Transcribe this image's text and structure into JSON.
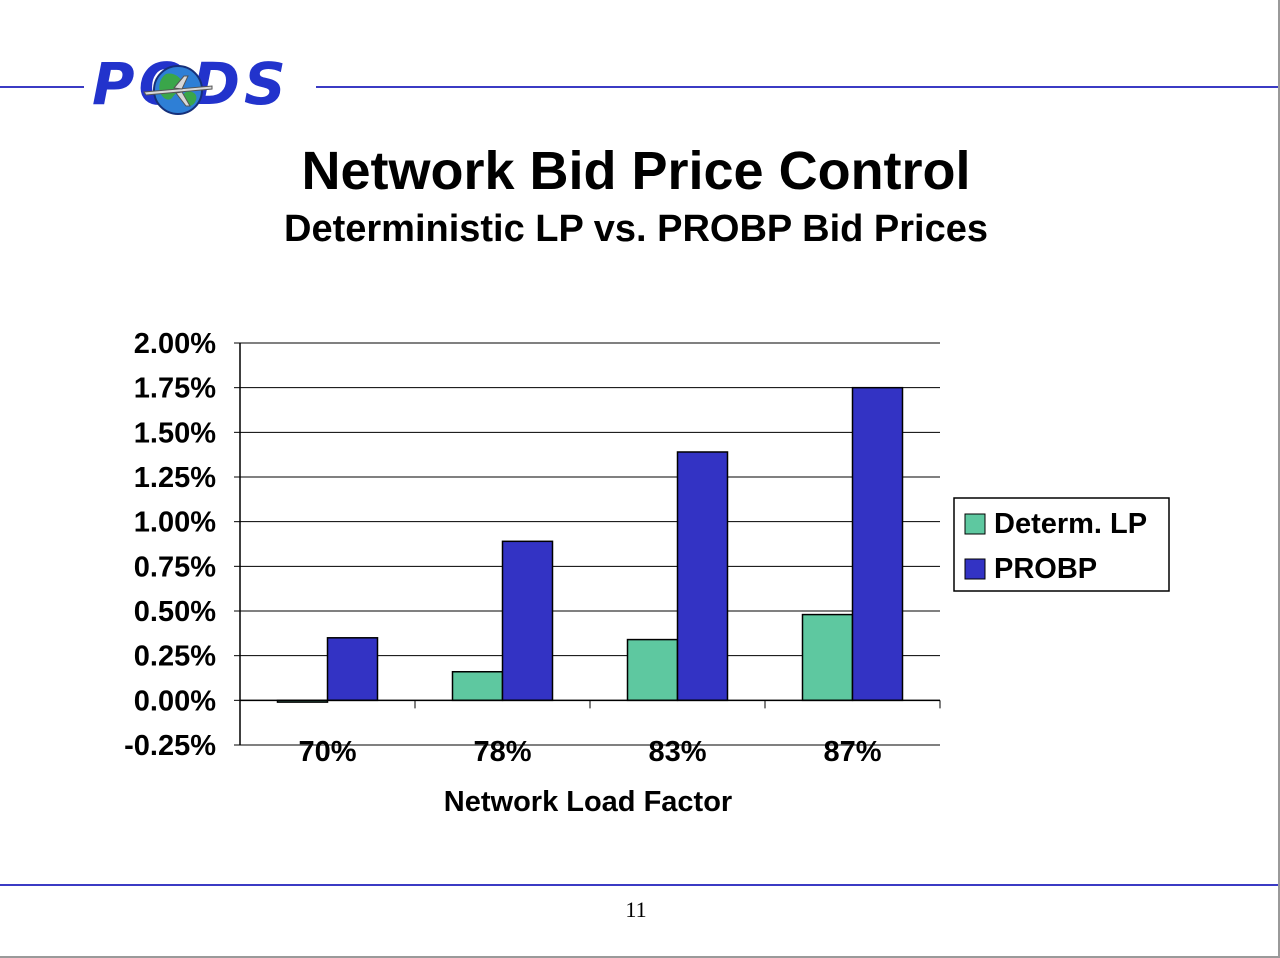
{
  "slide": {
    "title": "Network Bid Price Control",
    "subtitle": "Deterministic LP vs. PROBP Bid Prices",
    "page_number": "11",
    "logo_text": "PODS",
    "accent_color": "#3b3bc4"
  },
  "chart_data": {
    "type": "bar",
    "categories": [
      "70%",
      "78%",
      "83%",
      "87%"
    ],
    "series": [
      {
        "name": "Determ. LP",
        "color": "#5ec8a0",
        "values": [
          -0.01,
          0.16,
          0.34,
          0.48
        ]
      },
      {
        "name": "PROBP",
        "color": "#3333c4",
        "values": [
          0.35,
          0.89,
          1.39,
          1.75
        ]
      }
    ],
    "xlabel": "Network Load Factor",
    "ylabel": "",
    "ylim": [
      -0.25,
      2.0
    ],
    "yticks": [
      2.0,
      1.75,
      1.5,
      1.25,
      1.0,
      0.75,
      0.5,
      0.25,
      0.0,
      -0.25
    ],
    "ytick_labels": [
      "2.00%",
      "1.75%",
      "1.50%",
      "1.25%",
      "1.00%",
      "0.75%",
      "0.50%",
      "0.25%",
      "0.00%",
      "-0.25%"
    ],
    "grid": true,
    "legend_position": "right"
  }
}
